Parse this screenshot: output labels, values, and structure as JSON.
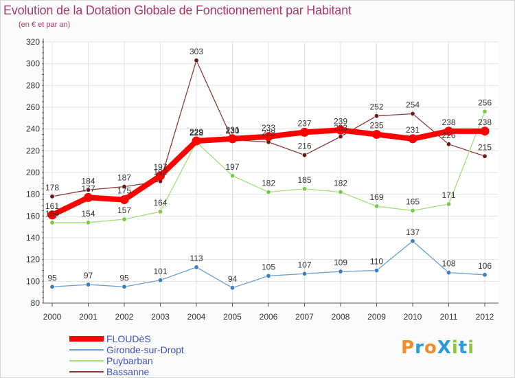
{
  "header": {
    "title": "Evolution de la Dotation Globale de Fonctionnement par Habitant",
    "subtitle": "(en € et par an)"
  },
  "logo": {
    "text": "ProXiti",
    "letters": [
      "P",
      "r",
      "o",
      "X",
      "i",
      "t",
      "i"
    ],
    "colors": [
      "#f28c28",
      "#2b9ad8",
      "#f28c28",
      "#2b9ad8",
      "#8cc63e",
      "#2b9ad8",
      "#8cc63e"
    ]
  },
  "chart_data": {
    "type": "line",
    "title": "Evolution de la Dotation Globale de Fonctionnement par Habitant",
    "ylabel": "(en € et par an)",
    "xlabel": "",
    "x": [
      "2000",
      "2001",
      "2002",
      "2003",
      "2004",
      "2005",
      "2006",
      "2007",
      "2008",
      "2009",
      "2010",
      "2011",
      "2012"
    ],
    "ylim": [
      80,
      320
    ],
    "yticks": [
      80,
      100,
      120,
      140,
      160,
      180,
      200,
      220,
      240,
      260,
      280,
      300,
      320
    ],
    "grid": true,
    "legend_position": "bottom-left",
    "series": [
      {
        "name": "FLOUDèS",
        "color": "#ff0000",
        "emphasis": true,
        "values": [
          161,
          177,
          175,
          197,
          229,
          231,
          233,
          237,
          239,
          235,
          231,
          238,
          238
        ],
        "labels": [
          "161",
          "177",
          "175",
          "197",
          "229",
          "231",
          "233",
          "237",
          "239",
          "235",
          "231",
          "238",
          "238"
        ]
      },
      {
        "name": "Gironde-sur-Dropt",
        "color": "#6a9ecf",
        "marker": "#3a7dc0",
        "values": [
          95,
          97,
          95,
          101,
          113,
          94,
          105,
          107,
          109,
          110,
          137,
          108,
          106
        ],
        "labels": [
          "95",
          "97",
          "95",
          "101",
          "113",
          "94",
          "105",
          "107",
          "109",
          "110",
          "137",
          "108",
          "106"
        ]
      },
      {
        "name": "Puybarban",
        "color": "#a6dc7a",
        "marker": "#7bc94a",
        "values": [
          154,
          154,
          157,
          164,
          228,
          197,
          182,
          185,
          182,
          169,
          165,
          171,
          256
        ],
        "labels": [
          "154",
          "154",
          "157",
          "164",
          "228",
          "197",
          "182",
          "185",
          "182",
          "169",
          "165",
          "171",
          "256"
        ]
      },
      {
        "name": "Bassanne",
        "color": "#8b3a3a",
        "marker": "#6b1a1a",
        "values": [
          178,
          184,
          187,
          192,
          303,
          230,
          228,
          216,
          233,
          252,
          254,
          226,
          215
        ],
        "labels": [
          "178",
          "184",
          "187",
          "192",
          "303",
          "230",
          "228",
          "216",
          "233",
          "252",
          "254",
          "226",
          "215"
        ]
      }
    ]
  }
}
